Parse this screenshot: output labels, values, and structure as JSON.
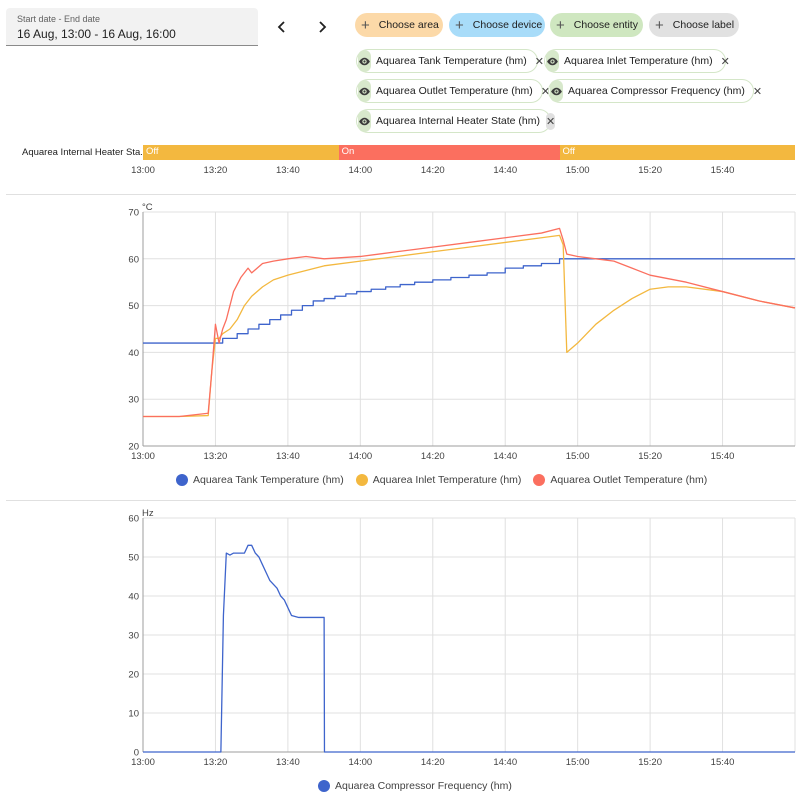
{
  "date_picker": {
    "label": "Start date - End date",
    "value": "16 Aug, 13:00 - 16 Aug, 16:00"
  },
  "chips": {
    "area": {
      "label": "Choose area",
      "color": "#fcd9a8"
    },
    "device": {
      "label": "Choose device",
      "color": "#a8dcf9"
    },
    "entity": {
      "label": "Choose entity",
      "color": "#cfe7c0"
    },
    "label": {
      "label": "Choose label",
      "color": "#e1e1e1"
    }
  },
  "entities": [
    {
      "name": "Aquarea Tank Temperature (hm)"
    },
    {
      "name": "Aquarea Inlet Temperature (hm)"
    },
    {
      "name": "Aquarea Outlet Temperature (hm)"
    },
    {
      "name": "Aquarea Compressor Frequency (hm)"
    },
    {
      "name": "Aquarea Internal Heater State (hm)"
    }
  ],
  "timeline": {
    "label": "Aquarea Internal Heater Sta...",
    "segments": [
      {
        "state": "Off",
        "start": 0,
        "end": 54,
        "color": "#f3b83f"
      },
      {
        "state": "On",
        "start": 54,
        "end": 115,
        "color": "#fb6f5f"
      },
      {
        "state": "Off",
        "start": 115,
        "end": 180,
        "color": "#f3b83f"
      }
    ]
  },
  "chart_data": [
    {
      "type": "line",
      "title": "",
      "ylabel": "°C",
      "xlabel": "",
      "x_ticks": [
        "13:00",
        "13:20",
        "13:40",
        "14:00",
        "14:20",
        "14:40",
        "15:00",
        "15:20",
        "15:40"
      ],
      "xlim": [
        "13:00",
        "16:00"
      ],
      "ylim": [
        20,
        70
      ],
      "y_ticks": [
        20,
        30,
        40,
        50,
        60,
        70
      ],
      "grid": true,
      "legend": "bottom-center",
      "series": [
        {
          "name": "Aquarea Tank Temperature (hm)",
          "color": "#3e64cc",
          "step": true,
          "x": [
            "13:00",
            "13:19",
            "13:22",
            "13:26",
            "13:29",
            "13:32",
            "13:35",
            "13:38",
            "13:41",
            "13:44",
            "13:47",
            "13:50",
            "13:53",
            "13:56",
            "13:59",
            "14:03",
            "14:07",
            "14:11",
            "14:15",
            "14:20",
            "14:25",
            "14:30",
            "14:35",
            "14:40",
            "14:45",
            "14:50",
            "14:55",
            "15:00",
            "16:00"
          ],
          "values": [
            42,
            42,
            43,
            44,
            45,
            46,
            47,
            48,
            49,
            50,
            51,
            51.5,
            52,
            52.5,
            53,
            53.5,
            54,
            54.5,
            55,
            55.5,
            56,
            56.5,
            57,
            58,
            58.5,
            59,
            60,
            60,
            60
          ]
        },
        {
          "name": "Aquarea Inlet Temperature (hm)",
          "color": "#f3b83f",
          "step": false,
          "x": [
            "13:00",
            "13:10",
            "13:18",
            "13:19",
            "13:20",
            "13:21",
            "13:22",
            "13:24",
            "13:26",
            "13:28",
            "13:30",
            "13:33",
            "13:36",
            "13:40",
            "13:45",
            "13:50",
            "14:00",
            "14:10",
            "14:20",
            "14:30",
            "14:40",
            "14:50",
            "14:55",
            "14:56",
            "14:57",
            "15:00",
            "15:05",
            "15:10",
            "15:15",
            "15:20",
            "15:25",
            "15:30",
            "15:40",
            "15:50",
            "16:00"
          ],
          "values": [
            26.3,
            26.3,
            26.5,
            36,
            43,
            43,
            44,
            45,
            47,
            50,
            52,
            54,
            55.5,
            56.5,
            57.5,
            58.5,
            59.5,
            60.5,
            61.5,
            62.5,
            63.5,
            64.5,
            65,
            63,
            40,
            42,
            46,
            49,
            51.5,
            53.5,
            54,
            54,
            53,
            51,
            49.5
          ]
        },
        {
          "name": "Aquarea Outlet Temperature (hm)",
          "color": "#fb6f5f",
          "step": false,
          "x": [
            "13:00",
            "13:10",
            "13:18",
            "13:19",
            "13:20",
            "13:21",
            "13:22",
            "13:23",
            "13:25",
            "13:27",
            "13:29",
            "13:30",
            "13:33",
            "13:36",
            "13:40",
            "13:45",
            "13:50",
            "14:00",
            "14:10",
            "14:20",
            "14:30",
            "14:40",
            "14:50",
            "14:55",
            "14:56",
            "14:57",
            "15:00",
            "15:05",
            "15:10",
            "15:15",
            "15:20",
            "15:30",
            "15:40",
            "15:50",
            "16:00"
          ],
          "values": [
            26.3,
            26.3,
            27,
            36,
            46,
            42,
            45,
            47,
            53,
            56,
            58,
            57,
            59,
            59.5,
            60,
            60.5,
            60,
            60.5,
            61.5,
            62.5,
            63.5,
            64.5,
            65.5,
            66.5,
            64,
            61,
            60.5,
            60,
            59.5,
            58,
            56.5,
            55,
            53,
            51,
            49.5
          ]
        }
      ]
    },
    {
      "type": "line",
      "title": "",
      "ylabel": "Hz",
      "xlabel": "",
      "x_ticks": [
        "13:00",
        "13:20",
        "13:40",
        "14:00",
        "14:20",
        "14:40",
        "15:00",
        "15:20",
        "15:40"
      ],
      "xlim": [
        "13:00",
        "16:00"
      ],
      "ylim": [
        0,
        60
      ],
      "y_ticks": [
        0,
        10,
        20,
        30,
        40,
        50,
        60
      ],
      "grid": true,
      "legend": "bottom-center",
      "series": [
        {
          "name": "Aquarea Compressor Frequency (hm)",
          "color": "#3e64cc",
          "step": false,
          "x": [
            "13:00",
            "13:21.5",
            "13:22.2",
            "13:23",
            "13:24",
            "13:25",
            "13:26",
            "13:28",
            "13:29",
            "13:30",
            "13:31",
            "13:32",
            "13:33",
            "13:34",
            "13:35",
            "13:36",
            "13:37",
            "13:38",
            "13:39",
            "13:40",
            "13:41",
            "13:43",
            "13:48",
            "13:50",
            "13:50.1",
            "16:00"
          ],
          "values": [
            0,
            0,
            35,
            51,
            50.5,
            51,
            51,
            51,
            53,
            53,
            51,
            50,
            48,
            46,
            44,
            43,
            42,
            40,
            39,
            37,
            35,
            34.5,
            34.5,
            34.5,
            0,
            0
          ]
        }
      ]
    }
  ]
}
